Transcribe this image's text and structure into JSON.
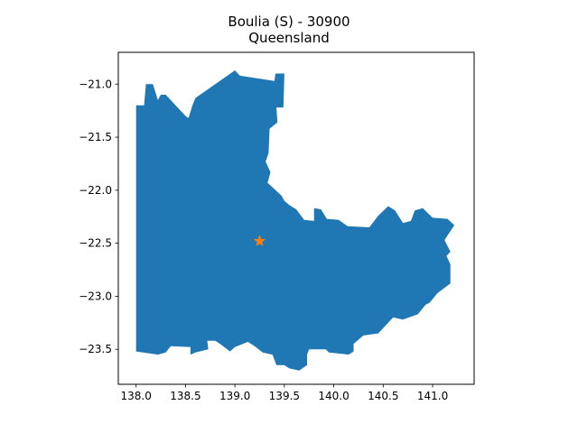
{
  "title_line1": "Boulia (S) - 30900",
  "title_line2": "Queensland",
  "colors": {
    "region": "#1f77b4",
    "marker": "#ff7f0e"
  },
  "map_data": {
    "xlim": [
      137.82,
      141.42
    ],
    "ylim": [
      -23.83,
      -20.7
    ],
    "xticks": [
      138.0,
      138.5,
      139.0,
      139.5,
      140.0,
      140.5,
      141.0
    ],
    "xtick_labels": [
      "138.0",
      "138.5",
      "139.0",
      "139.5",
      "140.0",
      "140.5",
      "141.0"
    ],
    "yticks": [
      -21.0,
      -21.5,
      -22.0,
      -22.5,
      -23.0,
      -23.5
    ],
    "ytick_labels": [
      "−21.0",
      "−21.5",
      "−22.0",
      "−22.5",
      "−23.0",
      "−23.5"
    ],
    "marker": {
      "lon": 139.25,
      "lat": -22.48,
      "symbol": "star"
    },
    "boundary": [
      [
        138.0,
        -21.2
      ],
      [
        138.08,
        -21.2
      ],
      [
        138.1,
        -21.0
      ],
      [
        138.17,
        -21.0
      ],
      [
        138.22,
        -21.15
      ],
      [
        138.25,
        -21.1
      ],
      [
        138.3,
        -21.1
      ],
      [
        138.5,
        -21.3
      ],
      [
        138.53,
        -21.32
      ],
      [
        138.57,
        -21.2
      ],
      [
        138.6,
        -21.13
      ],
      [
        139.0,
        -20.87
      ],
      [
        139.05,
        -20.92
      ],
      [
        139.4,
        -20.97
      ],
      [
        139.41,
        -20.9
      ],
      [
        139.5,
        -20.9
      ],
      [
        139.49,
        -21.22
      ],
      [
        139.42,
        -21.22
      ],
      [
        139.43,
        -21.36
      ],
      [
        139.35,
        -21.42
      ],
      [
        139.34,
        -21.65
      ],
      [
        139.31,
        -21.73
      ],
      [
        139.36,
        -21.83
      ],
      [
        139.33,
        -21.93
      ],
      [
        139.47,
        -22.05
      ],
      [
        139.5,
        -22.1
      ],
      [
        139.55,
        -22.14
      ],
      [
        139.62,
        -22.18
      ],
      [
        139.7,
        -22.28
      ],
      [
        139.8,
        -22.29
      ],
      [
        139.8,
        -22.17
      ],
      [
        139.87,
        -22.18
      ],
      [
        139.93,
        -22.27
      ],
      [
        140.05,
        -22.28
      ],
      [
        140.14,
        -22.34
      ],
      [
        140.36,
        -22.35
      ],
      [
        140.45,
        -22.24
      ],
      [
        140.55,
        -22.15
      ],
      [
        140.62,
        -22.19
      ],
      [
        140.7,
        -22.31
      ],
      [
        140.78,
        -22.29
      ],
      [
        140.82,
        -22.19
      ],
      [
        140.9,
        -22.17
      ],
      [
        141.0,
        -22.26
      ],
      [
        141.15,
        -22.27
      ],
      [
        141.22,
        -22.33
      ],
      [
        141.12,
        -22.47
      ],
      [
        141.18,
        -22.58
      ],
      [
        141.14,
        -22.62
      ],
      [
        141.18,
        -22.7
      ],
      [
        141.18,
        -22.88
      ],
      [
        141.05,
        -22.97
      ],
      [
        140.97,
        -23.06
      ],
      [
        140.93,
        -23.08
      ],
      [
        140.85,
        -23.17
      ],
      [
        140.7,
        -23.22
      ],
      [
        140.6,
        -23.2
      ],
      [
        140.45,
        -23.35
      ],
      [
        140.3,
        -23.37
      ],
      [
        140.2,
        -23.45
      ],
      [
        140.2,
        -23.52
      ],
      [
        140.15,
        -23.55
      ],
      [
        139.95,
        -23.53
      ],
      [
        139.92,
        -23.5
      ],
      [
        139.75,
        -23.5
      ],
      [
        139.73,
        -23.55
      ],
      [
        139.73,
        -23.65
      ],
      [
        139.65,
        -23.7
      ],
      [
        139.55,
        -23.68
      ],
      [
        139.5,
        -23.65
      ],
      [
        139.42,
        -23.65
      ],
      [
        139.38,
        -23.55
      ],
      [
        139.28,
        -23.53
      ],
      [
        139.2,
        -23.47
      ],
      [
        139.13,
        -23.43
      ],
      [
        139.0,
        -23.48
      ],
      [
        138.95,
        -23.52
      ],
      [
        138.85,
        -23.45
      ],
      [
        138.8,
        -23.42
      ],
      [
        138.72,
        -23.42
      ],
      [
        138.73,
        -23.5
      ],
      [
        138.6,
        -23.53
      ],
      [
        138.55,
        -23.55
      ],
      [
        138.55,
        -23.48
      ],
      [
        138.35,
        -23.47
      ],
      [
        138.3,
        -23.53
      ],
      [
        138.22,
        -23.55
      ],
      [
        138.0,
        -23.52
      ]
    ]
  }
}
